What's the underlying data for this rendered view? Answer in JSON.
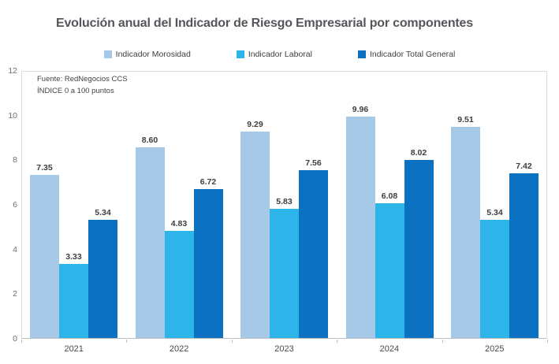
{
  "page": {
    "title": "Evolución anual del Indicador de Riesgo Empresarial por componentes"
  },
  "source_note": "Fuente: RedNegocios CCS\nÍNDICE 0 a 100  puntos",
  "chart_data": {
    "type": "bar",
    "title": "Evolución anual del Indicador de Riesgo Empresarial por componentes",
    "categories": [
      "2021",
      "2022",
      "2023",
      "2024",
      "2025"
    ],
    "series": [
      {
        "name": "Indicador Morosidad",
        "color": "#a6c9e8",
        "values": [
          7.35,
          8.6,
          9.29,
          9.96,
          9.51
        ]
      },
      {
        "name": "Indicador Laboral",
        "color": "#2db5e9",
        "values": [
          3.33,
          4.83,
          5.83,
          6.08,
          5.34
        ]
      },
      {
        "name": "Indicador Total General",
        "color": "#0b72c1",
        "values": [
          5.34,
          6.72,
          7.56,
          8.02,
          7.42
        ]
      }
    ],
    "xlabel": "",
    "ylabel": "",
    "ylim": [
      0,
      12
    ],
    "yticks": [
      0,
      2,
      4,
      6,
      8,
      10,
      12
    ],
    "grid": false,
    "legend_position": "top",
    "value_label_decimals": 2,
    "annotations": [
      "Fuente: RedNegocios CCS",
      "ÍNDICE 0 a 100  puntos"
    ]
  }
}
